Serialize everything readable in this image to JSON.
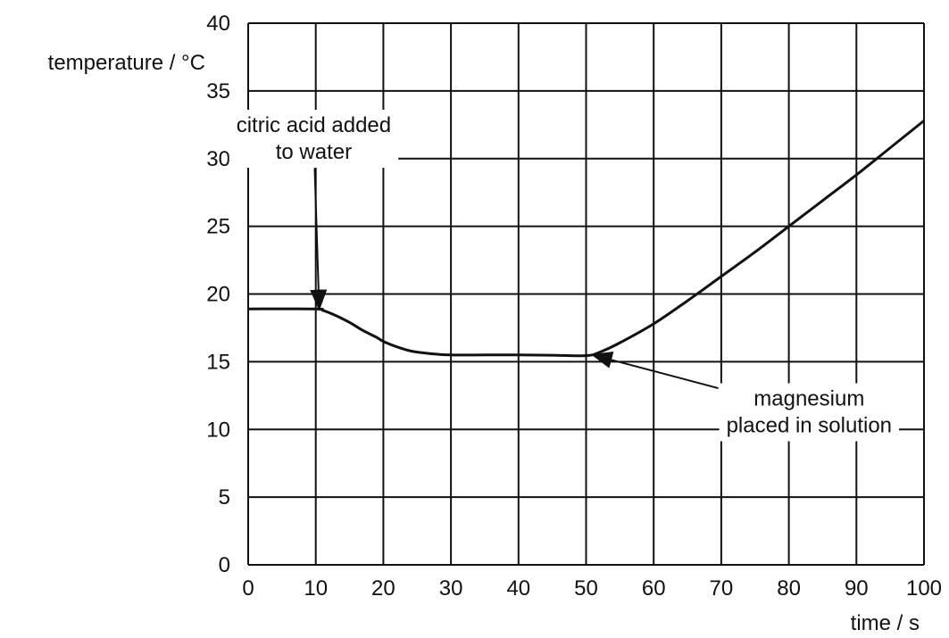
{
  "chart_data": {
    "type": "line",
    "title": "",
    "xlabel": "time / s",
    "ylabel": "temperature / °C",
    "xlim": [
      0,
      100
    ],
    "ylim": [
      0,
      40
    ],
    "x_ticks": [
      0,
      10,
      20,
      30,
      40,
      50,
      60,
      70,
      80,
      90,
      100
    ],
    "y_ticks": [
      0,
      5,
      10,
      15,
      20,
      25,
      30,
      35,
      40
    ],
    "grid": true,
    "legend": "none",
    "series": [
      {
        "color": "#111111",
        "x": [
          0,
          10,
          11,
          13,
          15,
          17,
          19,
          20,
          22,
          24,
          26,
          28,
          30,
          35,
          40,
          45,
          50,
          52,
          55,
          60,
          65,
          70,
          75,
          80,
          85,
          90,
          95,
          100
        ],
        "y": [
          18.9,
          18.9,
          18.8,
          18.4,
          17.9,
          17.3,
          16.8,
          16.5,
          16.1,
          15.8,
          15.65,
          15.55,
          15.5,
          15.5,
          15.5,
          15.48,
          15.45,
          15.7,
          16.4,
          17.8,
          19.5,
          21.3,
          23.1,
          25.0,
          26.9,
          28.8,
          30.8,
          32.8
        ]
      }
    ],
    "annotations": [
      {
        "lines": [
          "citric acid added",
          "to water"
        ],
        "x": 9.7,
        "y": 31.5,
        "target": [
          10.5,
          18.9
        ]
      },
      {
        "lines": [
          "magnesium",
          "placed in solution"
        ],
        "x": 83,
        "y": 11.3,
        "target": [
          51,
          15.5
        ]
      }
    ]
  }
}
